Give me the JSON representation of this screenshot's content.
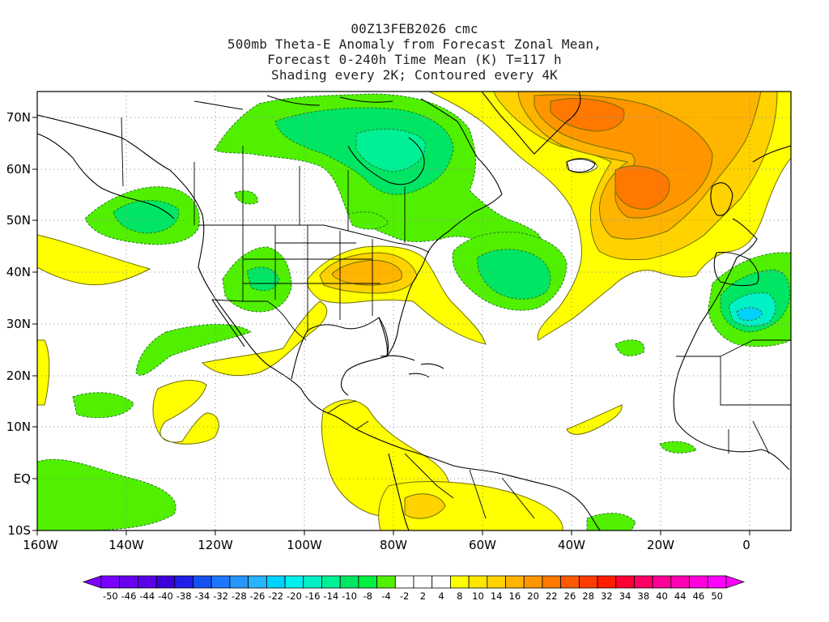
{
  "title": {
    "line1": "00Z13FEB2026 cmc",
    "line2": "500mb Theta-E Anomaly from Forecast Zonal Mean,",
    "line3": "Forecast 0-240h Time Mean (K) T=117 h",
    "line4": "Shading every 2K; Contoured every 4K"
  },
  "axes": {
    "x_ticks": [
      "160W",
      "140W",
      "120W",
      "100W",
      "80W",
      "60W",
      "40W",
      "20W",
      "0"
    ],
    "y_ticks": [
      "70N",
      "60N",
      "50N",
      "40N",
      "30N",
      "20N",
      "10N",
      "EQ",
      "10S"
    ]
  },
  "colorbar": {
    "labels": [
      "-50",
      "-46",
      "-44",
      "-40",
      "-38",
      "-34",
      "-32",
      "-28",
      "-26",
      "-22",
      "-20",
      "-16",
      "-14",
      "-10",
      "-8",
      "-4",
      "-2",
      "2",
      "4",
      "8",
      "10",
      "14",
      "16",
      "20",
      "22",
      "26",
      "28",
      "32",
      "34",
      "38",
      "40",
      "44",
      "46",
      "50"
    ],
    "colors": [
      "#7a00ff",
      "#6a00f0",
      "#5a00e8",
      "#3c00dc",
      "#1e1ee6",
      "#1450f0",
      "#1e78ff",
      "#2896ff",
      "#28b4ff",
      "#00d2ff",
      "#00f0f0",
      "#00f0c8",
      "#00f096",
      "#00e664",
      "#00f040",
      "#50f000",
      "#ffffff",
      "#ffffff",
      "#ffffff",
      "#ffff00",
      "#ffe600",
      "#ffd200",
      "#ffb400",
      "#ff9600",
      "#ff7800",
      "#ff5a00",
      "#ff3c00",
      "#ff1e00",
      "#ff0032",
      "#ff0064",
      "#ff0096",
      "#ff00b4",
      "#ff00dc",
      "#ff00ff"
    ]
  }
}
